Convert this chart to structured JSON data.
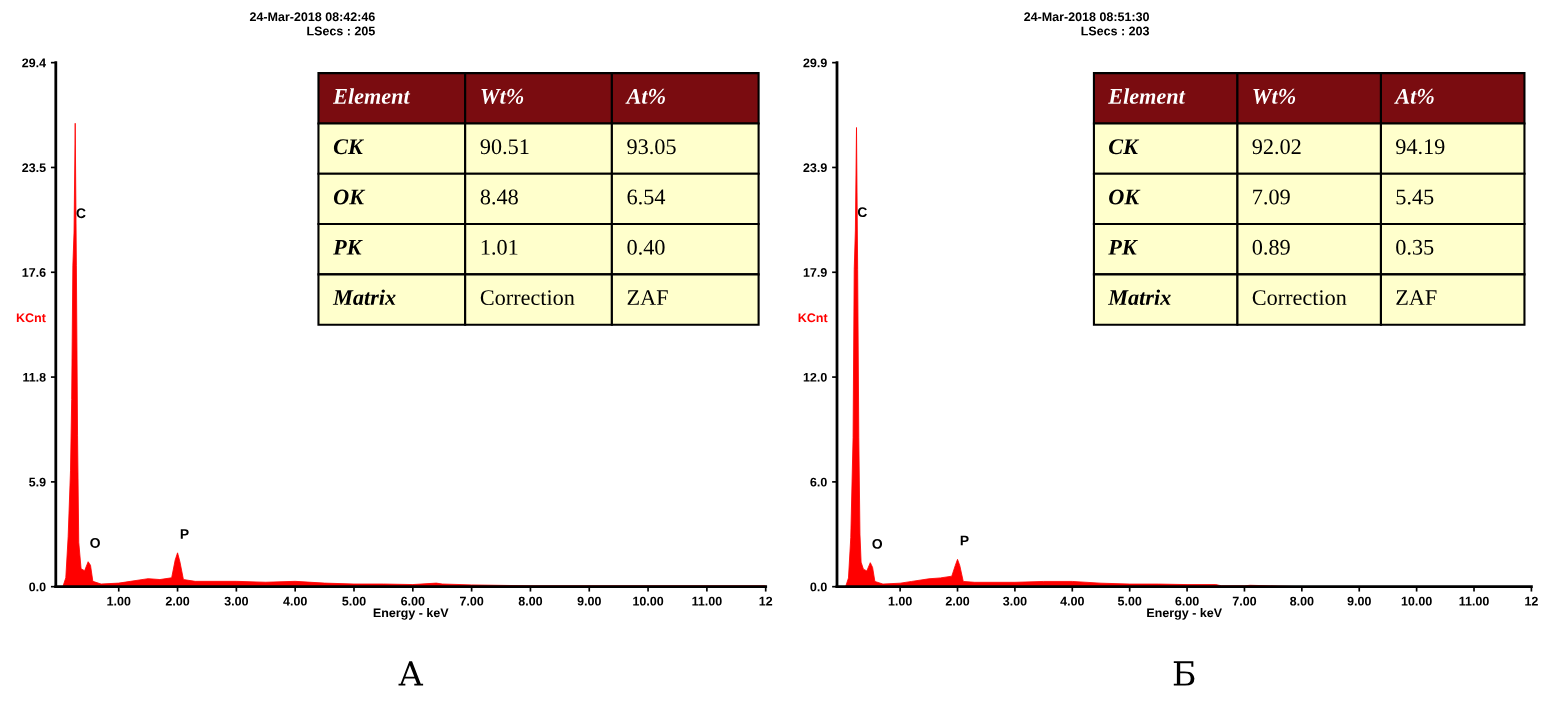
{
  "chart_data": [
    {
      "type": "area",
      "title": "24-Mar-2018 08:42:46",
      "subtitle": "LSecs : 205",
      "xlabel": "Energy - keV",
      "ylabel": "KCnt",
      "color": "#ff0000",
      "x": [
        0.05,
        0.1,
        0.14,
        0.18,
        0.2,
        0.22,
        0.24,
        0.26,
        0.28,
        0.3,
        0.32,
        0.36,
        0.42,
        0.48,
        0.52,
        0.56,
        0.7,
        1.0,
        1.2,
        1.5,
        1.7,
        1.9,
        1.96,
        2.0,
        2.04,
        2.1,
        2.3,
        3.0,
        3.5,
        4.0,
        4.5,
        5.0,
        5.5,
        6.0,
        6.4,
        6.5,
        7.0,
        8.0,
        10.0,
        12.0
      ],
      "values": [
        0,
        0.5,
        2.8,
        6.5,
        10.5,
        18.0,
        19.9,
        26.0,
        18.0,
        8.5,
        2.5,
        1.0,
        0.9,
        1.4,
        1.2,
        0.3,
        0.15,
        0.2,
        0.3,
        0.45,
        0.4,
        0.5,
        1.5,
        1.9,
        1.4,
        0.4,
        0.3,
        0.3,
        0.25,
        0.3,
        0.2,
        0.15,
        0.15,
        0.12,
        0.2,
        0.15,
        0.1,
        0.05,
        0.05,
        0.05
      ],
      "xlim": [
        -0.07,
        12
      ],
      "ylim": [
        0,
        29.4
      ],
      "xticks": [
        {
          "value": 1,
          "label": "1.00"
        },
        {
          "value": 2,
          "label": "2.00"
        },
        {
          "value": 3,
          "label": "3.00"
        },
        {
          "value": 4,
          "label": "4.00"
        },
        {
          "value": 5,
          "label": "5.00"
        },
        {
          "value": 6,
          "label": "6.00"
        },
        {
          "value": 7,
          "label": "7.00"
        },
        {
          "value": 8,
          "label": "8.00"
        },
        {
          "value": 9,
          "label": "9.00"
        },
        {
          "value": 10,
          "label": "10.00"
        },
        {
          "value": 11,
          "label": "11.00"
        },
        12
      ],
      "yticks": [
        {
          "value": 0,
          "label": "0.0"
        },
        {
          "value": 5.88,
          "label": "5.9"
        },
        {
          "value": 11.76,
          "label": "11.8"
        },
        {
          "value": 17.64,
          "label": "17.6"
        },
        {
          "value": 23.52,
          "label": "23.5"
        },
        29.4
      ],
      "annotations": [
        {
          "text": "C",
          "x": 0.24,
          "y": 19.9
        },
        {
          "text": "O",
          "x": 0.48,
          "y": 1.4
        },
        {
          "text": "P",
          "x": 2.0,
          "y": 1.9
        },
        "Element",
        "Wt%",
        "At%",
        "CK",
        "90.51",
        "93.05",
        "OK",
        "8.48",
        "6.54",
        "PK",
        "1.01",
        "0.40",
        "Matrix",
        "Correction",
        "ZAF",
        "А"
      ]
    },
    {
      "type": "area",
      "title": "24-Mar-2018 08:51:30",
      "subtitle": "LSecs : 203",
      "xlabel": "Energy - keV",
      "ylabel": "KCnt",
      "color": "#ff0000",
      "x": [
        0.05,
        0.1,
        0.14,
        0.18,
        0.2,
        0.22,
        0.24,
        0.26,
        0.28,
        0.3,
        0.32,
        0.36,
        0.42,
        0.48,
        0.52,
        0.56,
        0.7,
        1.0,
        1.2,
        1.5,
        1.7,
        1.9,
        1.96,
        2.0,
        2.04,
        2.1,
        2.3,
        3.0,
        3.5,
        4.0,
        4.5,
        5.0,
        5.5,
        6.0,
        6.5,
        6.6,
        7.0,
        7.1,
        8.0,
        10.0,
        12.0
      ],
      "values": [
        0,
        0.5,
        2.8,
        8.5,
        18.1,
        20.3,
        26.2,
        18.1,
        8.5,
        3.0,
        1.4,
        1.0,
        0.9,
        1.37,
        1.1,
        0.3,
        0.15,
        0.2,
        0.3,
        0.45,
        0.5,
        0.6,
        1.2,
        1.56,
        1.2,
        0.3,
        0.25,
        0.25,
        0.3,
        0.3,
        0.2,
        0.15,
        0.15,
        0.12,
        0.12,
        0.05,
        0.05,
        0.08,
        0.0,
        0.0,
        0.0
      ],
      "xlim": [
        -0.1,
        12
      ],
      "ylim": [
        0,
        29.9
      ],
      "xticks": [
        {
          "value": 1,
          "label": "1.00"
        },
        {
          "value": 2,
          "label": "2.00"
        },
        {
          "value": 3,
          "label": "3.00"
        },
        {
          "value": 4,
          "label": "4.00"
        },
        {
          "value": 5,
          "label": "5.00"
        },
        {
          "value": 6,
          "label": "6.00"
        },
        {
          "value": 7,
          "label": "7.00"
        },
        {
          "value": 8,
          "label": "8.00"
        },
        {
          "value": 9,
          "label": "9.00"
        },
        {
          "value": 10,
          "label": "10.00"
        },
        {
          "value": 11,
          "label": "11.00"
        },
        12
      ],
      "yticks": [
        {
          "value": 0,
          "label": "0.0"
        },
        {
          "value": 5.98,
          "label": "6.0"
        },
        {
          "value": 11.96,
          "label": "12.0"
        },
        {
          "value": 17.94,
          "label": "17.9"
        },
        {
          "value": 23.92,
          "label": "23.9"
        },
        29.9
      ],
      "annotations": [
        {
          "text": "C",
          "x": 0.22,
          "y": 20.3
        },
        {
          "text": "O",
          "x": 0.48,
          "y": 1.37
        },
        {
          "text": "P",
          "x": 2.0,
          "y": 1.56
        },
        "Element",
        "Wt%",
        "At%",
        "CK",
        "92.02",
        "94.19",
        "OK",
        "7.09",
        "5.45",
        "PK",
        "0.89",
        "0.35",
        "Matrix",
        "Correction",
        "ZAF",
        "Б"
      ]
    }
  ]
}
